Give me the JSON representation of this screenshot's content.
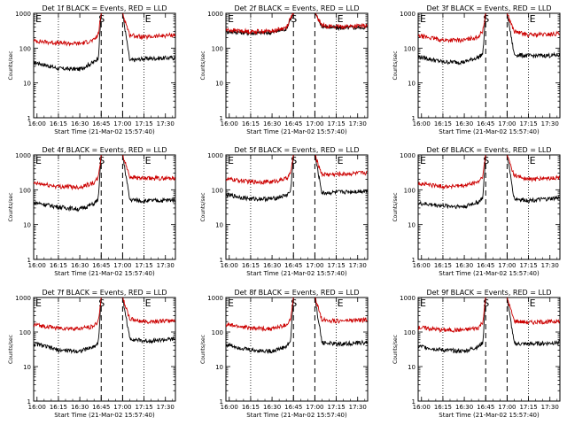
{
  "figure": {
    "x_start_label": "Start Time (21-Mar-02 15:57:40)",
    "y_label": "Counts/sec",
    "marker_labels": {
      "start": "E",
      "middle": "S",
      "end": "E"
    }
  },
  "colors": {
    "events": "#000000",
    "lld": "#cc0000",
    "axes": "#000000",
    "background": "#ffffff"
  },
  "chart_data": [
    {
      "type": "line",
      "title": "Det 1f BLACK = Events, RED = LLD",
      "xlabel": "Start Time (21-Mar-02 15:57:40)",
      "ylabel": "Counts/sec",
      "x_tick_labels": [
        "16:00",
        "16:15",
        "16:30",
        "16:45",
        "17:00",
        "17:15",
        "17:30"
      ],
      "y_tick_labels": [
        "1",
        "10",
        "100",
        "1000"
      ],
      "y_scale": "log",
      "ylim": [
        1,
        1000
      ],
      "dotted_verticals": [
        "16:15",
        "17:15"
      ],
      "dashed_verticals": [
        "16:45",
        "17:00"
      ],
      "series": [
        {
          "name": "Events",
          "x": [
            "16:00",
            "16:15",
            "16:30",
            "16:40",
            "16:43",
            "16:45",
            "16:57",
            "17:00",
            "17:05",
            "17:15",
            "17:30",
            "17:35"
          ],
          "y": [
            38,
            26,
            25,
            40,
            55,
            1000,
            1000,
            1000,
            44,
            50,
            52,
            53
          ]
        },
        {
          "name": "LLD",
          "x": [
            "16:00",
            "16:15",
            "16:30",
            "16:40",
            "16:43",
            "16:45",
            "16:57",
            "17:00",
            "17:05",
            "17:15",
            "17:30",
            "17:35"
          ],
          "y": [
            160,
            140,
            135,
            170,
            250,
            1000,
            1000,
            1000,
            240,
            205,
            230,
            240
          ]
        }
      ]
    },
    {
      "type": "line",
      "title": "Det 2f BLACK = Events, RED = LLD",
      "xlabel": "Start Time (21-Mar-02 15:57:40)",
      "ylabel": "Counts/sec",
      "x_tick_labels": [
        "16:00",
        "16:15",
        "16:30",
        "16:45",
        "17:00",
        "17:15",
        "17:30"
      ],
      "y_tick_labels": [
        "1",
        "10",
        "100",
        "1000"
      ],
      "y_scale": "log",
      "ylim": [
        1,
        1000
      ],
      "dotted_verticals": [
        "16:15",
        "17:15"
      ],
      "dashed_verticals": [
        "16:45",
        "17:00"
      ],
      "series": [
        {
          "name": "Events",
          "x": [
            "16:00",
            "16:15",
            "16:30",
            "16:40",
            "16:43",
            "16:45",
            "16:57",
            "17:00",
            "17:05",
            "17:15",
            "17:30",
            "17:35"
          ],
          "y": [
            300,
            270,
            280,
            360,
            700,
            1000,
            1000,
            1000,
            420,
            380,
            390,
            400
          ]
        },
        {
          "name": "LLD",
          "x": [
            "16:00",
            "16:15",
            "16:30",
            "16:40",
            "16:43",
            "16:45",
            "16:57",
            "17:00",
            "17:05",
            "17:15",
            "17:30",
            "17:35"
          ],
          "y": [
            330,
            300,
            310,
            390,
            750,
            1000,
            1000,
            1000,
            450,
            410,
            430,
            440
          ]
        }
      ]
    },
    {
      "type": "line",
      "title": "Det 3f BLACK = Events, RED = LLD",
      "xlabel": "Start Time (21-Mar-02 15:57:40)",
      "ylabel": "Counts/sec",
      "x_tick_labels": [
        "16:00",
        "16:15",
        "16:30",
        "16:45",
        "17:00",
        "17:15",
        "17:30"
      ],
      "y_tick_labels": [
        "1",
        "10",
        "100",
        "1000"
      ],
      "y_scale": "log",
      "ylim": [
        1,
        1000
      ],
      "dotted_verticals": [
        "16:15",
        "17:15"
      ],
      "dashed_verticals": [
        "16:45",
        "17:00"
      ],
      "series": [
        {
          "name": "Events",
          "x": [
            "16:00",
            "16:15",
            "16:30",
            "16:40",
            "16:43",
            "16:45",
            "16:57",
            "17:00",
            "17:05",
            "17:15",
            "17:30",
            "17:35"
          ],
          "y": [
            55,
            40,
            40,
            55,
            70,
            1000,
            1000,
            1000,
            65,
            60,
            62,
            63
          ]
        },
        {
          "name": "LLD",
          "x": [
            "16:00",
            "16:15",
            "16:30",
            "16:40",
            "16:43",
            "16:45",
            "16:57",
            "17:00",
            "17:05",
            "17:15",
            "17:30",
            "17:35"
          ],
          "y": [
            220,
            170,
            170,
            215,
            320,
            1000,
            1000,
            1000,
            300,
            240,
            250,
            260
          ]
        }
      ]
    },
    {
      "type": "line",
      "title": "Det 4f BLACK = Events, RED = LLD",
      "xlabel": "Start Time (21-Mar-02 15:57:40)",
      "ylabel": "Counts/sec",
      "x_tick_labels": [
        "16:00",
        "16:15",
        "16:30",
        "16:45",
        "17:00",
        "17:15",
        "17:30"
      ],
      "y_tick_labels": [
        "1",
        "10",
        "100",
        "1000"
      ],
      "y_scale": "log",
      "ylim": [
        1,
        1000
      ],
      "dotted_verticals": [
        "16:15",
        "17:15"
      ],
      "dashed_verticals": [
        "16:45",
        "17:00"
      ],
      "series": [
        {
          "name": "Events",
          "x": [
            "16:00",
            "16:15",
            "16:30",
            "16:40",
            "16:43",
            "16:45",
            "16:57",
            "17:00",
            "17:05",
            "17:15",
            "17:30",
            "17:35"
          ],
          "y": [
            42,
            32,
            28,
            40,
            55,
            1000,
            1000,
            1000,
            52,
            48,
            50,
            52
          ]
        },
        {
          "name": "LLD",
          "x": [
            "16:00",
            "16:15",
            "16:30",
            "16:40",
            "16:43",
            "16:45",
            "16:57",
            "17:00",
            "17:05",
            "17:15",
            "17:30",
            "17:35"
          ],
          "y": [
            150,
            125,
            120,
            160,
            220,
            1000,
            1000,
            1000,
            240,
            210,
            215,
            220
          ]
        }
      ]
    },
    {
      "type": "line",
      "title": "Det 5f BLACK = Events, RED = LLD",
      "xlabel": "Start Time (21-Mar-02 15:57:40)",
      "ylabel": "Counts/sec",
      "x_tick_labels": [
        "16:00",
        "16:15",
        "16:30",
        "16:45",
        "17:00",
        "17:15",
        "17:30"
      ],
      "y_tick_labels": [
        "1",
        "10",
        "100",
        "1000"
      ],
      "y_scale": "log",
      "ylim": [
        1,
        1000
      ],
      "dotted_verticals": [
        "16:15",
        "17:15"
      ],
      "dashed_verticals": [
        "16:45",
        "17:00"
      ],
      "series": [
        {
          "name": "Events",
          "x": [
            "16:00",
            "16:15",
            "16:30",
            "16:40",
            "16:43",
            "16:45",
            "16:57",
            "17:00",
            "17:05",
            "17:15",
            "17:30",
            "17:35"
          ],
          "y": [
            70,
            55,
            55,
            70,
            90,
            1000,
            1000,
            1000,
            80,
            85,
            90,
            92
          ]
        },
        {
          "name": "LLD",
          "x": [
            "16:00",
            "16:15",
            "16:30",
            "16:40",
            "16:43",
            "16:45",
            "16:57",
            "17:00",
            "17:05",
            "17:15",
            "17:30",
            "17:35"
          ],
          "y": [
            200,
            170,
            170,
            210,
            300,
            1000,
            1000,
            1000,
            280,
            280,
            300,
            310
          ]
        }
      ]
    },
    {
      "type": "line",
      "title": "Det 6f BLACK = Events, RED = LLD",
      "xlabel": "Start Time (21-Mar-02 15:57:40)",
      "ylabel": "Counts/sec",
      "x_tick_labels": [
        "16:00",
        "16:15",
        "16:30",
        "16:45",
        "17:00",
        "17:15",
        "17:30"
      ],
      "y_tick_labels": [
        "1",
        "10",
        "100",
        "1000"
      ],
      "y_scale": "log",
      "ylim": [
        1,
        1000
      ],
      "dotted_verticals": [
        "16:15",
        "17:15"
      ],
      "dashed_verticals": [
        "16:45",
        "17:00"
      ],
      "series": [
        {
          "name": "Events",
          "x": [
            "16:00",
            "16:15",
            "16:30",
            "16:40",
            "16:43",
            "16:45",
            "16:57",
            "17:00",
            "17:05",
            "17:15",
            "17:30",
            "17:35"
          ],
          "y": [
            40,
            35,
            33,
            45,
            60,
            1000,
            1000,
            1000,
            55,
            50,
            55,
            58
          ]
        },
        {
          "name": "LLD",
          "x": [
            "16:00",
            "16:15",
            "16:30",
            "16:40",
            "16:43",
            "16:45",
            "16:57",
            "17:00",
            "17:05",
            "17:15",
            "17:30",
            "17:35"
          ],
          "y": [
            150,
            125,
            130,
            170,
            250,
            1000,
            1000,
            1000,
            260,
            200,
            215,
            220
          ]
        }
      ]
    },
    {
      "type": "line",
      "title": "Det 7f BLACK = Events, RED = LLD",
      "xlabel": "Start Time (21-Mar-02 15:57:40)",
      "ylabel": "Counts/sec",
      "x_tick_labels": [
        "16:00",
        "16:15",
        "16:30",
        "16:45",
        "17:00",
        "17:15",
        "17:30"
      ],
      "y_tick_labels": [
        "1",
        "10",
        "100",
        "1000"
      ],
      "y_scale": "log",
      "ylim": [
        1,
        1000
      ],
      "dotted_verticals": [
        "16:15",
        "17:15"
      ],
      "dashed_verticals": [
        "16:45",
        "17:00"
      ],
      "series": [
        {
          "name": "Events",
          "x": [
            "16:00",
            "16:15",
            "16:30",
            "16:40",
            "16:43",
            "16:45",
            "16:57",
            "17:00",
            "17:05",
            "17:15",
            "17:30",
            "17:35"
          ],
          "y": [
            45,
            30,
            28,
            38,
            50,
            1000,
            1000,
            1000,
            65,
            55,
            60,
            62
          ]
        },
        {
          "name": "LLD",
          "x": [
            "16:00",
            "16:15",
            "16:30",
            "16:40",
            "16:43",
            "16:45",
            "16:57",
            "17:00",
            "17:05",
            "17:15",
            "17:30",
            "17:35"
          ],
          "y": [
            160,
            130,
            125,
            150,
            210,
            1000,
            1000,
            1000,
            240,
            200,
            210,
            215
          ]
        }
      ]
    },
    {
      "type": "line",
      "title": "Det 8f BLACK = Events, RED = LLD",
      "xlabel": "Start Time (21-Mar-02 15:57:40)",
      "ylabel": "Counts/sec",
      "x_tick_labels": [
        "16:00",
        "16:15",
        "16:30",
        "16:45",
        "17:00",
        "17:15",
        "17:30"
      ],
      "y_tick_labels": [
        "1",
        "10",
        "100",
        "1000"
      ],
      "y_scale": "log",
      "ylim": [
        1,
        1000
      ],
      "dotted_verticals": [
        "16:15",
        "17:15"
      ],
      "dashed_verticals": [
        "16:45",
        "17:00"
      ],
      "series": [
        {
          "name": "Events",
          "x": [
            "16:00",
            "16:15",
            "16:30",
            "16:40",
            "16:43",
            "16:45",
            "16:57",
            "17:00",
            "17:05",
            "17:15",
            "17:30",
            "17:35"
          ],
          "y": [
            42,
            30,
            28,
            38,
            55,
            1000,
            1000,
            1000,
            50,
            45,
            48,
            50
          ]
        },
        {
          "name": "LLD",
          "x": [
            "16:00",
            "16:15",
            "16:30",
            "16:40",
            "16:43",
            "16:45",
            "16:57",
            "17:00",
            "17:05",
            "17:15",
            "17:30",
            "17:35"
          ],
          "y": [
            160,
            130,
            125,
            160,
            230,
            1000,
            1000,
            1000,
            230,
            210,
            220,
            225
          ]
        }
      ]
    },
    {
      "type": "line",
      "title": "Det 9f BLACK = Events, RED = LLD",
      "xlabel": "Start Time (21-Mar-02 15:57:40)",
      "ylabel": "Counts/sec",
      "x_tick_labels": [
        "16:00",
        "16:15",
        "16:30",
        "16:45",
        "17:00",
        "17:15",
        "17:30"
      ],
      "y_tick_labels": [
        "1",
        "10",
        "100",
        "1000"
      ],
      "y_scale": "log",
      "ylim": [
        1,
        1000
      ],
      "dotted_verticals": [
        "16:15",
        "17:15"
      ],
      "dashed_verticals": [
        "16:45",
        "17:00"
      ],
      "series": [
        {
          "name": "Events",
          "x": [
            "16:00",
            "16:15",
            "16:30",
            "16:40",
            "16:43",
            "16:45",
            "16:57",
            "17:00",
            "17:05",
            "17:15",
            "17:30",
            "17:35"
          ],
          "y": [
            38,
            30,
            28,
            38,
            50,
            1000,
            1000,
            1000,
            46,
            45,
            48,
            50
          ]
        },
        {
          "name": "LLD",
          "x": [
            "16:00",
            "16:15",
            "16:30",
            "16:40",
            "16:43",
            "16:45",
            "16:57",
            "17:00",
            "17:05",
            "17:15",
            "17:30",
            "17:35"
          ],
          "y": [
            135,
            115,
            115,
            135,
            200,
            1000,
            1000,
            1000,
            210,
            190,
            200,
            205
          ]
        }
      ]
    }
  ]
}
